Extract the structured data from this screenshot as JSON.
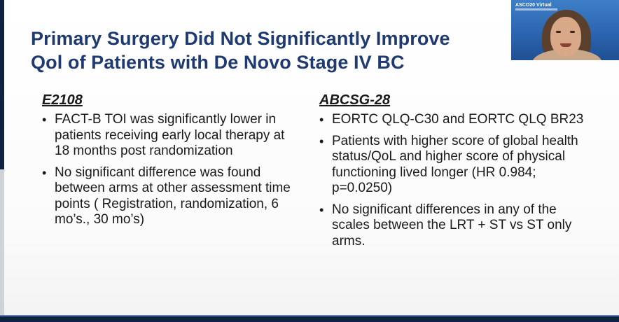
{
  "slide": {
    "title_line1": "Primary Surgery Did Not Significantly Improve",
    "title_line2": "Qol of Patients with De Novo Stage IV BC"
  },
  "left_column": {
    "heading": "E2108",
    "bullets": [
      "FACT-B TOI was significantly lower in patients receiving early local therapy at 18 months post randomization",
      "No significant difference was found between arms at other assessment time points ( Registration, randomization, 6 mo’s., 30 mo’s)"
    ]
  },
  "right_column": {
    "heading": "ABCSG-28",
    "bullets": [
      "EORTC QLQ-C30 and EORTC QLQ BR23",
      "Patients with higher score of global health status/QoL and higher score of physical functioning lived longer (HR 0.984; p=0.0250)",
      "No significant differences in any of the scales between  the LRT + ST vs ST only arms."
    ]
  },
  "video_overlay": {
    "logo_text": "ASCO20 Virtual"
  },
  "colors": {
    "title": "#1f3a70",
    "body_text": "#1a1a1a",
    "navy_bar": "#0d2340",
    "video_bg": "#2a63ad"
  }
}
